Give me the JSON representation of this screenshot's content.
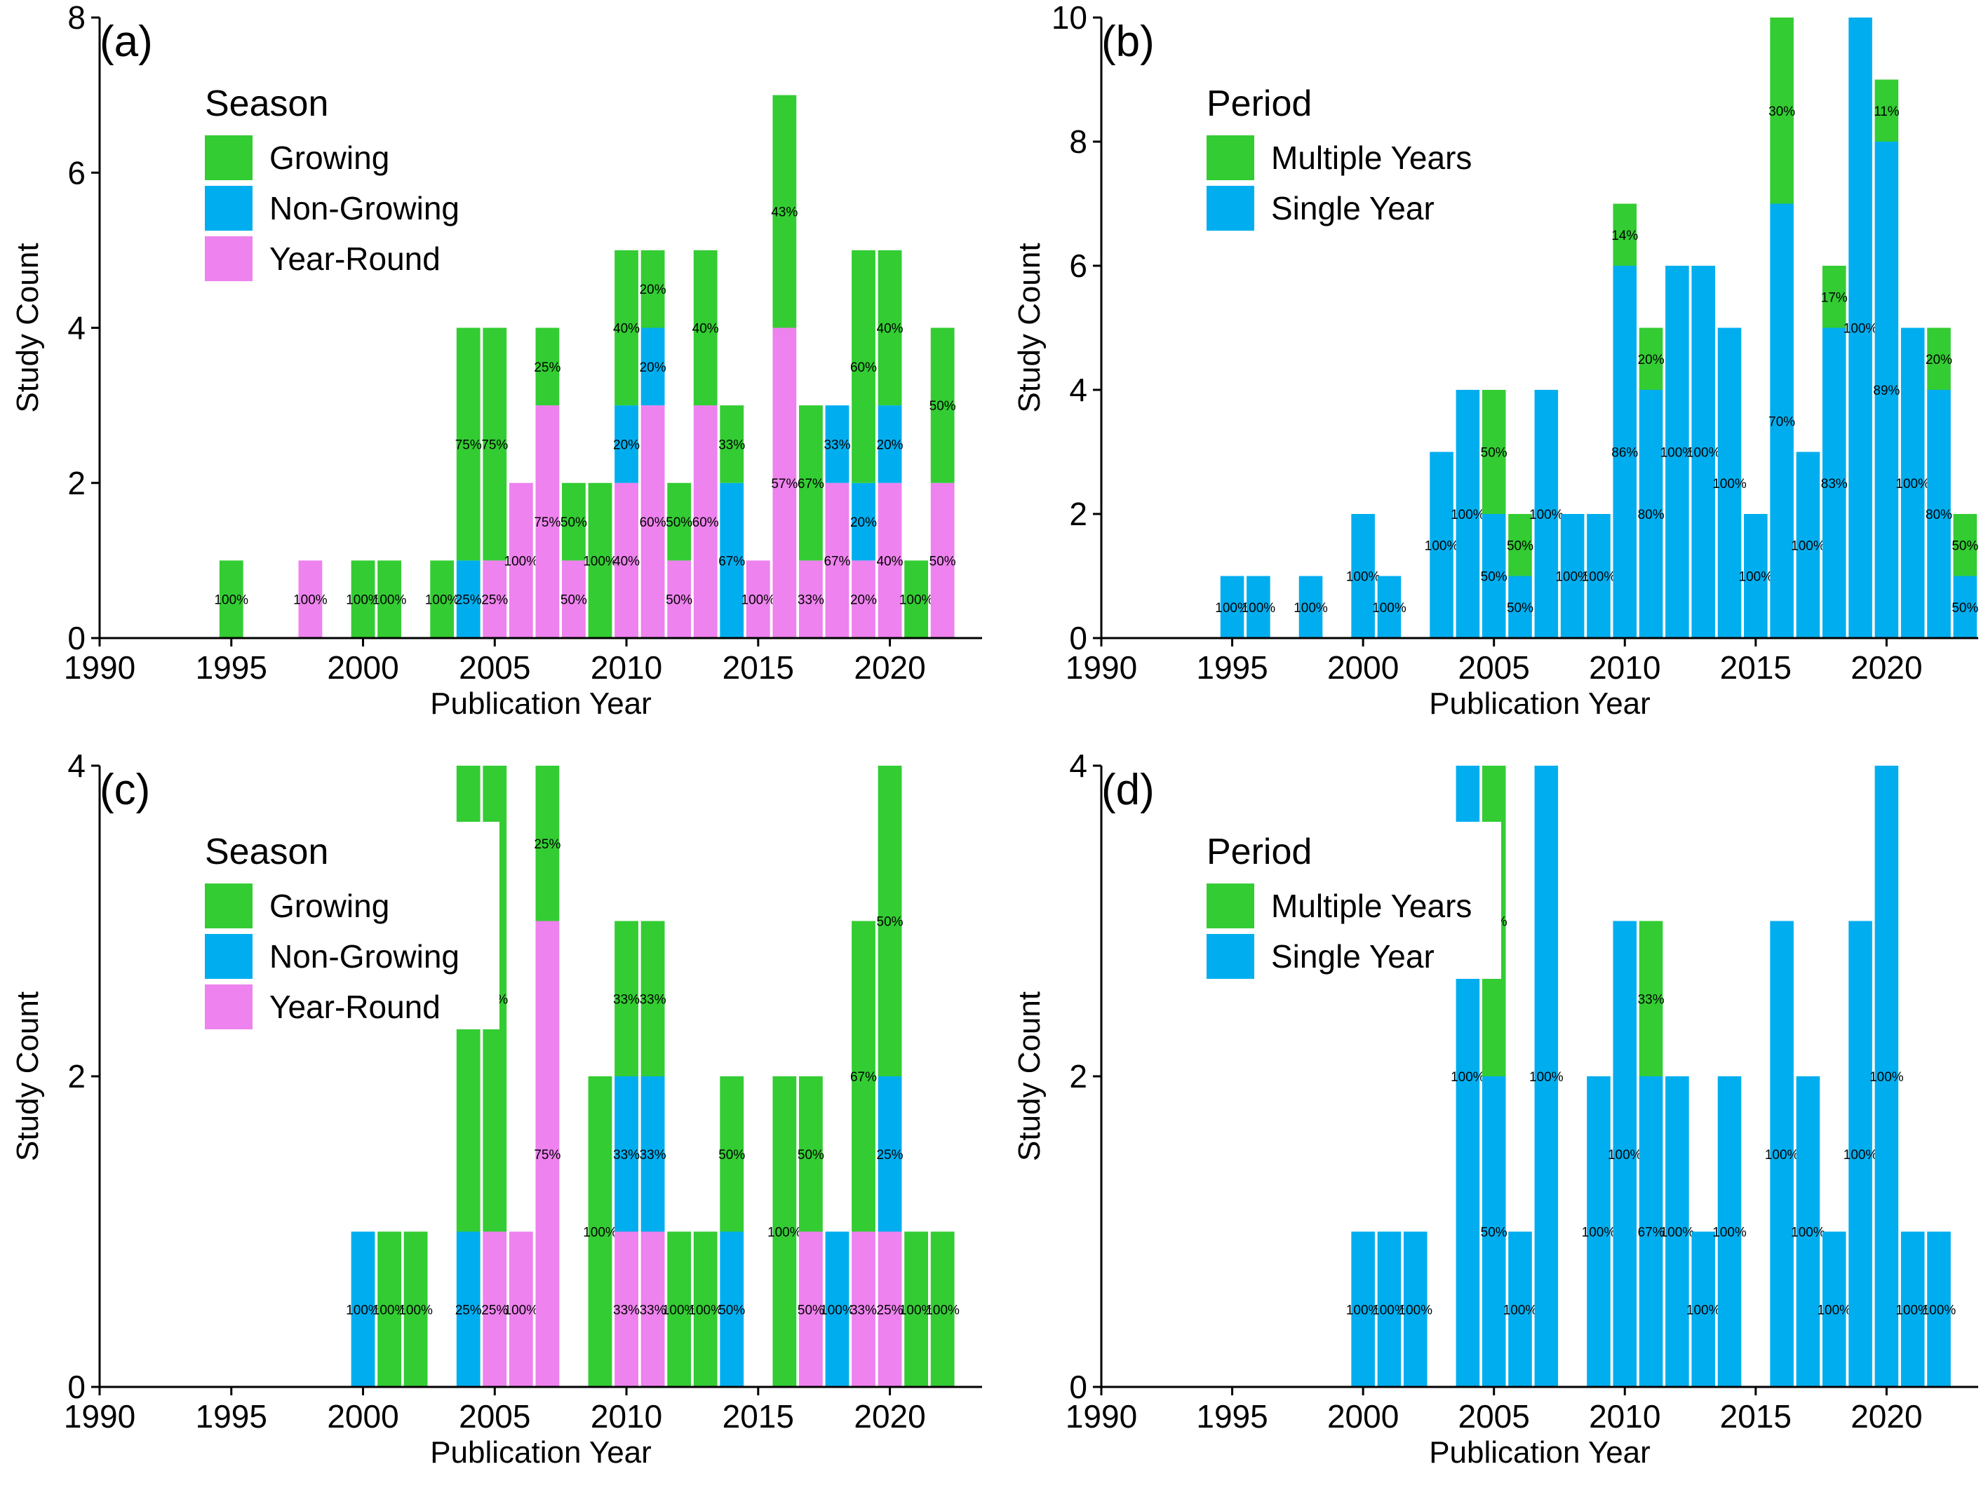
{
  "colors": {
    "Growing": "#33CC33",
    "Non-Growing": "#00AEEF",
    "Year-Round": "#EE82EE",
    "Multiple Years": "#33CC33",
    "Single Year": "#00AEEF"
  },
  "chart_data": [
    {
      "id": "a",
      "type": "bar",
      "stacked": true,
      "panel_label": "(a)",
      "xlabel": "Publication Year",
      "ylabel": "Study Count",
      "xlim": [
        1990,
        2023.5
      ],
      "ylim": [
        0,
        8
      ],
      "xticks": [
        1990,
        1995,
        2000,
        2005,
        2010,
        2015,
        2020
      ],
      "yticks": [
        0,
        2,
        4,
        6,
        8
      ],
      "legend": {
        "title": "Season",
        "position": "top-left",
        "items": [
          "Growing",
          "Non-Growing",
          "Year-Round"
        ]
      },
      "stack_order": [
        "Year-Round",
        "Non-Growing",
        "Growing"
      ],
      "years": [
        1995,
        1998,
        2000,
        2001,
        2003,
        2004,
        2005,
        2006,
        2007,
        2008,
        2009,
        2010,
        2011,
        2012,
        2013,
        2014,
        2015,
        2016,
        2017,
        2018,
        2019,
        2020,
        2021,
        2022
      ],
      "series": [
        {
          "name": "Growing",
          "values": [
            1,
            0,
            1,
            1,
            1,
            3,
            3,
            0,
            1,
            1,
            2,
            2,
            1,
            1,
            2,
            1,
            0,
            3,
            2,
            0,
            3,
            2,
            1,
            2
          ]
        },
        {
          "name": "Non-Growing",
          "values": [
            0,
            0,
            0,
            0,
            0,
            1,
            0,
            0,
            0,
            0,
            0,
            1,
            1,
            0,
            0,
            2,
            0,
            0,
            0,
            1,
            1,
            1,
            0,
            0
          ]
        },
        {
          "name": "Year-Round",
          "values": [
            0,
            1,
            0,
            0,
            0,
            0,
            1,
            2,
            3,
            1,
            0,
            2,
            3,
            1,
            3,
            0,
            1,
            4,
            1,
            2,
            1,
            2,
            0,
            2
          ]
        }
      ],
      "labels": [
        [
          "100%",
          "",
          "",
          ""
        ],
        [
          "",
          "",
          "100%",
          ""
        ],
        [
          "100%",
          "",
          "",
          ""
        ],
        [
          "100%",
          "",
          "",
          ""
        ],
        [
          "100%",
          "",
          "",
          ""
        ],
        [
          "75%",
          "25%",
          "",
          ""
        ],
        [
          "75%",
          "",
          "25%",
          ""
        ],
        [
          "",
          "",
          "100%",
          ""
        ],
        [
          "25%",
          "",
          "75%",
          ""
        ],
        [
          "50%",
          "",
          "50%",
          ""
        ],
        [
          "100%",
          "",
          "",
          ""
        ],
        [
          "40%",
          "20%",
          "40%",
          ""
        ],
        [
          "20%",
          "20%",
          "60%",
          ""
        ],
        [
          "50%",
          "",
          "50%",
          ""
        ],
        [
          "40%",
          "",
          "60%",
          ""
        ],
        [
          "33%",
          "67%",
          "",
          ""
        ],
        [
          "",
          "",
          "100%",
          ""
        ],
        [
          "43%",
          "",
          "57%",
          ""
        ],
        [
          "67%",
          "",
          "33%",
          ""
        ],
        [
          "",
          "33%",
          "67%",
          ""
        ],
        [
          "60%",
          "20%",
          "20%",
          ""
        ],
        [
          "40%",
          "20%",
          "40%",
          ""
        ],
        [
          "100%",
          "",
          "",
          ""
        ],
        [
          "50%",
          "",
          "50%",
          ""
        ]
      ]
    },
    {
      "id": "b",
      "type": "bar",
      "stacked": true,
      "panel_label": "(b)",
      "xlabel": "Publication Year",
      "ylabel": "Study Count",
      "xlim": [
        1990,
        2023.5
      ],
      "ylim": [
        0,
        10
      ],
      "xticks": [
        1990,
        1995,
        2000,
        2005,
        2010,
        2015,
        2020
      ],
      "yticks": [
        0,
        2,
        4,
        6,
        8,
        10
      ],
      "legend": {
        "title": "Period",
        "position": "top-left",
        "items": [
          "Multiple Years",
          "Single Year"
        ]
      },
      "stack_order": [
        "Single Year",
        "Multiple Years"
      ],
      "years": [
        1995,
        1996,
        1998,
        2000,
        2001,
        2003,
        2004,
        2005,
        2006,
        2007,
        2008,
        2009,
        2010,
        2011,
        2012,
        2013,
        2014,
        2015,
        2016,
        2017,
        2018,
        2019,
        2020,
        2021,
        2022,
        2023
      ],
      "series": [
        {
          "name": "Multiple Years",
          "values": [
            0,
            0,
            0,
            0,
            0,
            0,
            0,
            2,
            1,
            0,
            0,
            0,
            1,
            1,
            0,
            0,
            0,
            0,
            3,
            0,
            1,
            0,
            1,
            0,
            1,
            1
          ]
        },
        {
          "name": "Single Year",
          "values": [
            1,
            1,
            1,
            2,
            1,
            3,
            4,
            2,
            1,
            4,
            2,
            2,
            6,
            4,
            6,
            6,
            5,
            2,
            7,
            3,
            5,
            10,
            8,
            5,
            4,
            1
          ]
        }
      ],
      "labels": [
        [
          "",
          "100%"
        ],
        [
          "",
          "100%"
        ],
        [
          "",
          "100%"
        ],
        [
          "",
          "100%"
        ],
        [
          "",
          "100%"
        ],
        [
          "",
          "100%"
        ],
        [
          "",
          "100%"
        ],
        [
          "50%",
          "50%"
        ],
        [
          "50%",
          "50%"
        ],
        [
          "",
          "100%"
        ],
        [
          "",
          "100%"
        ],
        [
          "",
          "100%"
        ],
        [
          "14%",
          "86%"
        ],
        [
          "20%",
          "80%"
        ],
        [
          "",
          "100%"
        ],
        [
          "",
          "100%"
        ],
        [
          "",
          "100%"
        ],
        [
          "",
          "100%"
        ],
        [
          "30%",
          "70%"
        ],
        [
          "",
          "100%"
        ],
        [
          "17%",
          "83%"
        ],
        [
          "",
          "100%"
        ],
        [
          "11%",
          "89%"
        ],
        [
          "",
          "100%"
        ],
        [
          "20%",
          "80%"
        ],
        [
          "50%",
          "50%"
        ]
      ]
    },
    {
      "id": "c",
      "type": "bar",
      "stacked": true,
      "panel_label": "(c)",
      "xlabel": "Publication Year",
      "ylabel": "Study Count",
      "xlim": [
        1990,
        2023.5
      ],
      "ylim": [
        0,
        4
      ],
      "xticks": [
        1990,
        1995,
        2000,
        2005,
        2010,
        2015,
        2020
      ],
      "yticks": [
        0,
        2,
        4
      ],
      "legend": {
        "title": "Season",
        "position": "top-left",
        "items": [
          "Growing",
          "Non-Growing",
          "Year-Round"
        ]
      },
      "stack_order": [
        "Year-Round",
        "Non-Growing",
        "Growing"
      ],
      "years": [
        2000,
        2001,
        2002,
        2004,
        2005,
        2006,
        2007,
        2009,
        2010,
        2011,
        2012,
        2013,
        2014,
        2016,
        2017,
        2018,
        2019,
        2020,
        2021,
        2022
      ],
      "series": [
        {
          "name": "Growing",
          "values": [
            0,
            1,
            1,
            3,
            3,
            0,
            1,
            2,
            1,
            1,
            1,
            1,
            1,
            2,
            1,
            0,
            2,
            2,
            1,
            1
          ]
        },
        {
          "name": "Non-Growing",
          "values": [
            1,
            0,
            0,
            1,
            0,
            0,
            0,
            0,
            1,
            1,
            0,
            0,
            1,
            0,
            0,
            1,
            0,
            1,
            0,
            0
          ]
        },
        {
          "name": "Year-Round",
          "values": [
            0,
            0,
            0,
            0,
            1,
            1,
            3,
            0,
            1,
            1,
            0,
            0,
            0,
            0,
            1,
            0,
            1,
            1,
            0,
            0
          ]
        }
      ],
      "labels": [
        [
          "",
          "100%",
          ""
        ],
        [
          "100%",
          "",
          ""
        ],
        [
          "100%",
          "",
          ""
        ],
        [
          "75%",
          "25%",
          ""
        ],
        [
          "75%",
          "",
          "25%"
        ],
        [
          "",
          "",
          "100%"
        ],
        [
          "25%",
          "",
          "75%"
        ],
        [
          "100%",
          "",
          ""
        ],
        [
          "33%",
          "33%",
          "33%"
        ],
        [
          "33%",
          "33%",
          "33%"
        ],
        [
          "100%",
          "",
          ""
        ],
        [
          "100%",
          "",
          ""
        ],
        [
          "50%",
          "50%",
          ""
        ],
        [
          "100%",
          "",
          ""
        ],
        [
          "50%",
          "",
          "50%"
        ],
        [
          "",
          "100%",
          ""
        ],
        [
          "67%",
          "",
          "33%"
        ],
        [
          "50%",
          "25%",
          "25%"
        ],
        [
          "100%",
          "",
          ""
        ],
        [
          "100%",
          "",
          ""
        ]
      ]
    },
    {
      "id": "d",
      "type": "bar",
      "stacked": true,
      "panel_label": "(d)",
      "xlabel": "Publication Year",
      "ylabel": "Study Count",
      "xlim": [
        1990,
        2023.5
      ],
      "ylim": [
        0,
        4
      ],
      "xticks": [
        1990,
        1995,
        2000,
        2005,
        2010,
        2015,
        2020
      ],
      "yticks": [
        0,
        2,
        4
      ],
      "legend": {
        "title": "Period",
        "position": "top-left",
        "items": [
          "Multiple Years",
          "Single Year"
        ]
      },
      "stack_order": [
        "Single Year",
        "Multiple Years"
      ],
      "years": [
        2000,
        2001,
        2002,
        2004,
        2005,
        2006,
        2007,
        2009,
        2010,
        2011,
        2012,
        2013,
        2014,
        2016,
        2017,
        2018,
        2019,
        2020,
        2021,
        2022
      ],
      "series": [
        {
          "name": "Multiple Years",
          "values": [
            0,
            0,
            0,
            0,
            2,
            0,
            0,
            0,
            0,
            1,
            0,
            0,
            0,
            0,
            0,
            0,
            0,
            0,
            0,
            0
          ]
        },
        {
          "name": "Single Year",
          "values": [
            1,
            1,
            1,
            4,
            2,
            1,
            4,
            2,
            3,
            2,
            2,
            1,
            2,
            3,
            2,
            1,
            3,
            4,
            1,
            1
          ]
        }
      ],
      "labels": [
        [
          "",
          "100%"
        ],
        [
          "",
          "100%"
        ],
        [
          "",
          "100%"
        ],
        [
          "",
          "100%"
        ],
        [
          "50%",
          "50%"
        ],
        [
          "",
          "100%"
        ],
        [
          "",
          "100%"
        ],
        [
          "",
          "100%"
        ],
        [
          "",
          "100%"
        ],
        [
          "33%",
          "67%"
        ],
        [
          "",
          "100%"
        ],
        [
          "",
          "100%"
        ],
        [
          "",
          "100%"
        ],
        [
          "",
          "100%"
        ],
        [
          "",
          "100%"
        ],
        [
          "",
          "100%"
        ],
        [
          "",
          "100%"
        ],
        [
          "",
          "100%"
        ],
        [
          "",
          "100%"
        ],
        [
          "",
          "100%"
        ]
      ]
    }
  ]
}
